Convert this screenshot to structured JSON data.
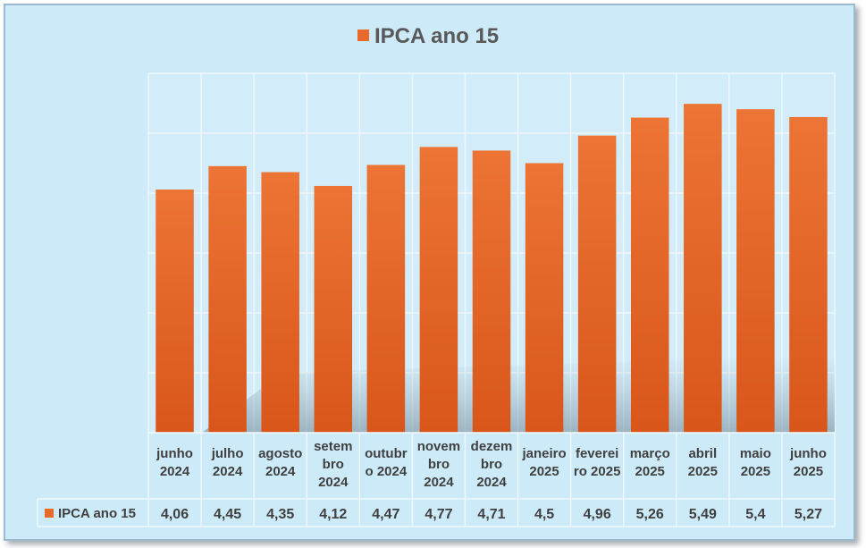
{
  "chart_data": {
    "type": "bar",
    "title": "IPCA ano 15",
    "legend": "top",
    "grid": true,
    "data_table": true,
    "categories": [
      [
        "junho",
        "2024"
      ],
      [
        "julho",
        "2024"
      ],
      [
        "agosto",
        "2024"
      ],
      [
        "setem",
        "bro",
        "2024"
      ],
      [
        "outubr",
        "o 2024"
      ],
      [
        "novem",
        "bro",
        "2024"
      ],
      [
        "dezem",
        "bro",
        "2024"
      ],
      [
        "janeiro",
        "2025"
      ],
      [
        "feverei",
        "ro 2025"
      ],
      [
        "março",
        "2025"
      ],
      [
        "abril",
        "2025"
      ],
      [
        "maio",
        "2025"
      ],
      [
        "junho",
        "2025"
      ]
    ],
    "series": [
      {
        "name": "IPCA ano 15",
        "color": "#e86a2c",
        "values": [
          4.06,
          4.45,
          4.35,
          4.12,
          4.47,
          4.77,
          4.71,
          4.5,
          4.96,
          5.26,
          5.49,
          5.4,
          5.27
        ],
        "value_labels": [
          "4,06",
          "4,45",
          "4,35",
          "4,12",
          "4,47",
          "4,77",
          "4,71",
          "4,5",
          "4,96",
          "5,26",
          "5,49",
          "5,4",
          "5,27"
        ]
      }
    ],
    "ylim": [
      0,
      6
    ]
  }
}
